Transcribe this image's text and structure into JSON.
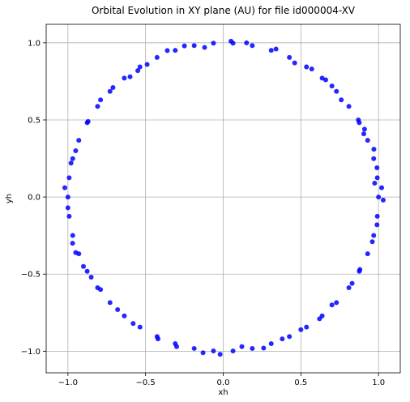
{
  "chart_data": {
    "type": "scatter",
    "title": "Orbital Evolution in XY plane (AU) for file id000004-XV",
    "xlabel": "xh",
    "ylabel": "yh",
    "xlim": [
      -1.14,
      1.14
    ],
    "ylim": [
      -1.14,
      1.12
    ],
    "xticks": [
      -1.0,
      -0.5,
      0.0,
      0.5,
      1.0
    ],
    "xtick_labels": [
      "−1.0",
      "−0.5",
      "0.0",
      "0.5",
      "1.0"
    ],
    "yticks": [
      -1.0,
      -0.5,
      0.0,
      0.5,
      1.0
    ],
    "ytick_labels": [
      "−1.0",
      "−0.5",
      "0.0",
      "0.5",
      "1.0"
    ],
    "grid": true,
    "marker_color": "#0000ff",
    "series": [
      {
        "points": [
          [
            1.0,
            0.0
          ],
          [
            0.992,
            0.125
          ],
          [
            0.969,
            0.249
          ],
          [
            0.93,
            0.368
          ],
          [
            0.876,
            0.482
          ],
          [
            0.809,
            0.588
          ],
          [
            0.729,
            0.685
          ],
          [
            0.637,
            0.771
          ],
          [
            0.536,
            0.844
          ],
          [
            0.426,
            0.905
          ],
          [
            0.309,
            0.951
          ],
          [
            0.187,
            0.982
          ],
          [
            0.063,
            0.998
          ],
          [
            -0.063,
            0.998
          ],
          [
            -0.187,
            0.982
          ],
          [
            -0.309,
            0.951
          ],
          [
            -0.426,
            0.905
          ],
          [
            -0.536,
            0.844
          ],
          [
            -0.637,
            0.771
          ],
          [
            -0.729,
            0.685
          ],
          [
            -0.809,
            0.588
          ],
          [
            -0.876,
            0.482
          ],
          [
            -0.93,
            0.368
          ],
          [
            -0.969,
            0.249
          ],
          [
            -0.992,
            0.125
          ],
          [
            -1.0,
            0.0
          ],
          [
            -0.992,
            -0.125
          ],
          [
            -0.969,
            -0.249
          ],
          [
            -0.93,
            -0.368
          ],
          [
            -0.876,
            -0.482
          ],
          [
            -0.809,
            -0.588
          ],
          [
            -0.729,
            -0.685
          ],
          [
            -0.637,
            -0.771
          ],
          [
            -0.536,
            -0.844
          ],
          [
            -0.426,
            -0.905
          ],
          [
            -0.309,
            -0.951
          ],
          [
            -0.187,
            -0.982
          ],
          [
            -0.063,
            -0.998
          ],
          [
            0.063,
            -0.998
          ],
          [
            0.187,
            -0.982
          ],
          [
            0.309,
            -0.951
          ],
          [
            0.426,
            -0.905
          ],
          [
            0.536,
            -0.844
          ],
          [
            0.637,
            -0.771
          ],
          [
            0.729,
            -0.685
          ],
          [
            0.809,
            -0.588
          ],
          [
            0.876,
            -0.482
          ],
          [
            0.93,
            -0.368
          ],
          [
            0.969,
            -0.249
          ],
          [
            0.992,
            -0.125
          ],
          [
            1.02,
            0.06
          ],
          [
            0.97,
            0.31
          ],
          [
            0.87,
            0.5
          ],
          [
            0.7,
            0.72
          ],
          [
            0.46,
            0.87
          ],
          [
            0.15,
            1.0
          ],
          [
            -0.12,
            0.97
          ],
          [
            -0.36,
            0.95
          ],
          [
            -0.6,
            0.78
          ],
          [
            -0.79,
            0.63
          ],
          [
            -0.95,
            0.3
          ],
          [
            -1.02,
            0.06
          ],
          [
            -0.97,
            -0.3
          ],
          [
            -0.85,
            -0.52
          ],
          [
            -0.68,
            -0.73
          ],
          [
            -0.42,
            -0.92
          ],
          [
            -0.13,
            -1.01
          ],
          [
            0.12,
            -0.97
          ],
          [
            0.38,
            -0.92
          ],
          [
            0.62,
            -0.79
          ],
          [
            0.83,
            -0.56
          ],
          [
            0.96,
            -0.29
          ],
          [
            1.03,
            -0.02
          ],
          [
            0.99,
            0.19
          ],
          [
            0.91,
            0.44
          ],
          [
            0.76,
            0.63
          ],
          [
            0.57,
            0.83
          ],
          [
            0.34,
            0.96
          ],
          [
            0.05,
            1.01
          ],
          [
            -0.25,
            0.98
          ],
          [
            -0.49,
            0.86
          ],
          [
            -0.71,
            0.71
          ],
          [
            -0.87,
            0.49
          ],
          [
            -0.98,
            0.22
          ],
          [
            -1.0,
            -0.07
          ],
          [
            -0.95,
            -0.36
          ],
          [
            -0.79,
            -0.6
          ],
          [
            -0.58,
            -0.82
          ],
          [
            -0.3,
            -0.97
          ],
          [
            -0.02,
            -1.02
          ],
          [
            0.26,
            -0.98
          ],
          [
            0.5,
            -0.86
          ],
          [
            0.7,
            -0.7
          ],
          [
            0.88,
            -0.47
          ],
          [
            0.99,
            -0.18
          ],
          [
            0.975,
            0.09
          ],
          [
            0.905,
            0.41
          ],
          [
            0.66,
            0.76
          ],
          [
            -0.55,
            0.82
          ],
          [
            -0.9,
            -0.45
          ]
        ]
      }
    ]
  }
}
